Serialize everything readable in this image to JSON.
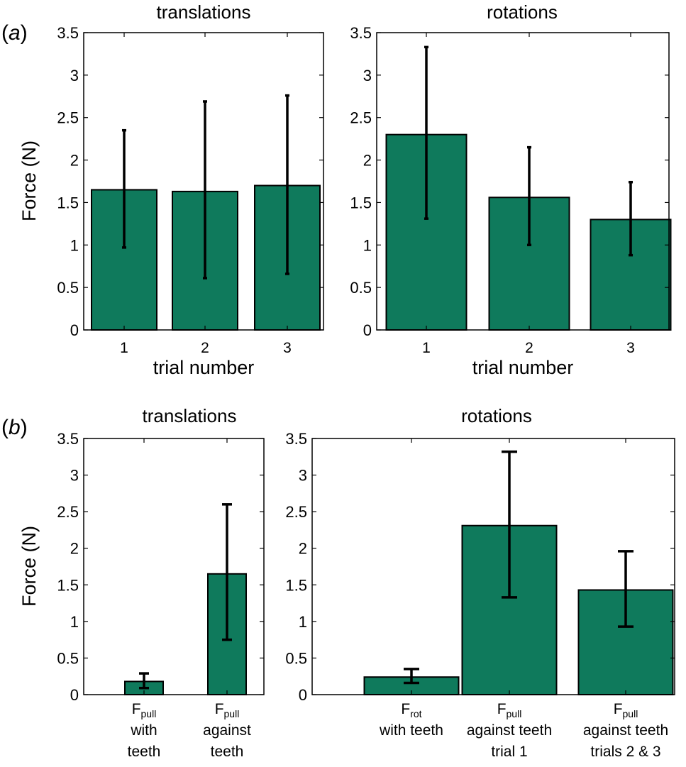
{
  "colors": {
    "bar": "#0f7a5c",
    "stroke": "#000000",
    "background": "#ffffff"
  },
  "panels": [
    {
      "letter": "a"
    },
    {
      "letter": "b"
    }
  ],
  "chart_data": [
    {
      "type": "bar",
      "panel": "a",
      "title": "translations",
      "xlabel": "trial number",
      "ylabel": "Force (N)",
      "ylim": [
        0,
        3.5
      ],
      "yticks": [
        "0",
        "0.5",
        "1",
        "1.5",
        "2",
        "2.5",
        "3",
        "3.5"
      ],
      "categories": [
        {
          "lines": [
            {
              "main": "1"
            }
          ]
        },
        {
          "lines": [
            {
              "main": "2"
            }
          ]
        },
        {
          "lines": [
            {
              "main": "3"
            }
          ]
        }
      ],
      "values": [
        1.65,
        1.63,
        1.7
      ],
      "error_low": [
        0.97,
        0.61,
        0.66
      ],
      "error_high": [
        2.35,
        2.69,
        2.76
      ]
    },
    {
      "type": "bar",
      "panel": "a",
      "title": "rotations",
      "xlabel": "trial number",
      "ylabel": "",
      "ylim": [
        0,
        3.5
      ],
      "yticks": [
        "0",
        "0.5",
        "1",
        "1.5",
        "2",
        "2.5",
        "3",
        "3.5"
      ],
      "categories": [
        {
          "lines": [
            {
              "main": "1"
            }
          ]
        },
        {
          "lines": [
            {
              "main": "2"
            }
          ]
        },
        {
          "lines": [
            {
              "main": "3"
            }
          ]
        }
      ],
      "values": [
        2.3,
        1.56,
        1.3
      ],
      "error_low": [
        1.31,
        1.0,
        0.88
      ],
      "error_high": [
        3.33,
        2.15,
        1.74
      ]
    },
    {
      "type": "bar",
      "panel": "b",
      "title": "translations",
      "xlabel": "",
      "ylabel": "Force (N)",
      "ylim": [
        0,
        3.5
      ],
      "yticks": [
        "0",
        "0.5",
        "1",
        "1.5",
        "2",
        "2.5",
        "3",
        "3.5"
      ],
      "categories": [
        {
          "lines": [
            {
              "main": "F",
              "sub": "pull"
            },
            {
              "main": "with"
            },
            {
              "main": "teeth"
            }
          ]
        },
        {
          "lines": [
            {
              "main": "F",
              "sub": "pull"
            },
            {
              "main": "against"
            },
            {
              "main": "teeth"
            }
          ]
        }
      ],
      "values": [
        0.18,
        1.65
      ],
      "error_low": [
        0.09,
        0.75
      ],
      "error_high": [
        0.29,
        2.6
      ]
    },
    {
      "type": "bar",
      "panel": "b",
      "title": "rotations",
      "xlabel": "",
      "ylabel": "",
      "ylim": [
        0,
        3.5
      ],
      "yticks": [
        "0",
        "0.5",
        "1",
        "1.5",
        "2",
        "2.5",
        "3",
        "3.5"
      ],
      "categories": [
        {
          "lines": [
            {
              "main": "F",
              "sub": "rot"
            },
            {
              "main": "with teeth"
            }
          ]
        },
        {
          "lines": [
            {
              "main": "F",
              "sub": "pull"
            },
            {
              "main": "against teeth"
            },
            {
              "main": "trial 1"
            }
          ]
        },
        {
          "lines": [
            {
              "main": "F",
              "sub": "pull"
            },
            {
              "main": "against teeth"
            },
            {
              "main": "trials 2 & 3"
            }
          ]
        }
      ],
      "values": [
        0.24,
        2.31,
        1.43
      ],
      "error_low": [
        0.16,
        1.33,
        0.93
      ],
      "error_high": [
        0.35,
        3.32,
        1.96
      ]
    }
  ]
}
